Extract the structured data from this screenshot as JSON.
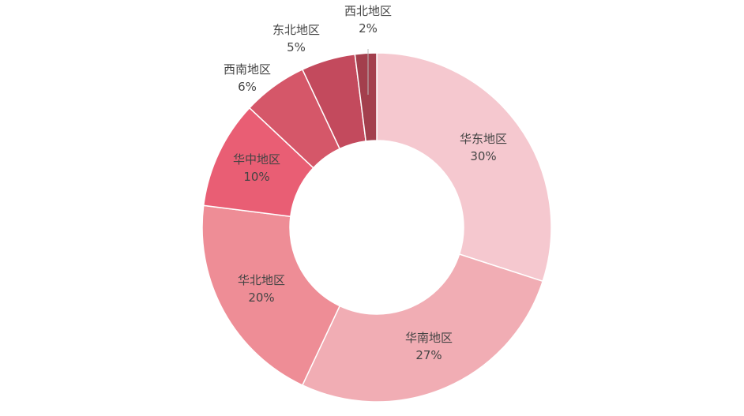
{
  "chart_data": {
    "type": "pie",
    "variant": "donut",
    "title": "",
    "start": "top, clockwise",
    "legend": "none",
    "slices": [
      {
        "label": "华东地区",
        "value": 30,
        "display": "30%",
        "color": "#f5c8cf"
      },
      {
        "label": "华南地区",
        "value": 27,
        "display": "27%",
        "color": "#f1adb4"
      },
      {
        "label": "华北地区",
        "value": 20,
        "display": "20%",
        "color": "#ee8d96"
      },
      {
        "label": "华中地区",
        "value": 10,
        "display": "10%",
        "color": "#e95e74"
      },
      {
        "label": "西南地区",
        "value": 6,
        "display": "6%",
        "color": "#d55769"
      },
      {
        "label": "东北地区",
        "value": 5,
        "display": "5%",
        "color": "#c34a5d"
      },
      {
        "label": "西北地区",
        "value": 2,
        "display": "2%",
        "color": "#a33f4d"
      }
    ]
  }
}
